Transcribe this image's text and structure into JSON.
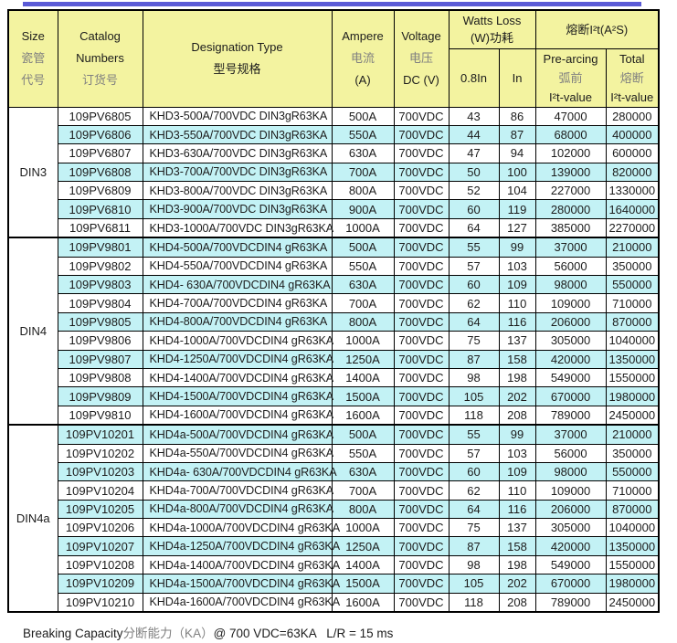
{
  "colors": {
    "header-bg": "#F3F3A0",
    "stripe-bg": "#C3F2F5",
    "top-rule": "#5B5BD6",
    "grid-line": "#000000",
    "cn-text": "#808080"
  },
  "table": {
    "header": {
      "size_en": "Size",
      "size_cn1": "瓷管",
      "size_cn2": "代号",
      "catalog_en1": "Catalog",
      "catalog_en2": "Numbers",
      "catalog_cn": "订货号",
      "designation_en": "Designation Type",
      "designation_cn": "型号规格",
      "ampere_en": "Ampere",
      "ampere_cn": "电流",
      "ampere_unit": "(A)",
      "voltage_en": "Voltage",
      "voltage_cn": "电压",
      "voltage_unit": "DC (V)",
      "watts_loss_en": "Watts Loss",
      "watts_loss_cn": "(W)功耗",
      "watts_sub_08": "0.8In",
      "watts_sub_in": "In",
      "i2t_group": "熔断I²t(A²S)",
      "prearcing_en": "Pre-arcing",
      "prearcing_cn": "弧前",
      "prearcing_sub": "I²t-value",
      "total_en": "Total",
      "total_cn": "熔断",
      "total_sub": "I²t-value"
    },
    "sections": [
      {
        "size": "DIN3",
        "rows": [
          {
            "catalog": "109PV6805",
            "designation": "KHD3-500A/700VDC DIN3gR63KA",
            "ampere": "500A",
            "voltage": "700VDC",
            "watts_08in": "43",
            "watts_in": "86",
            "prearcing_i2t": "47000",
            "total_i2t": "280000"
          },
          {
            "catalog": "109PV6806",
            "designation": "KHD3-550A/700VDC DIN3gR63KA",
            "ampere": "550A",
            "voltage": "700VDC",
            "watts_08in": "44",
            "watts_in": "87",
            "prearcing_i2t": "68000",
            "total_i2t": "400000"
          },
          {
            "catalog": "109PV6807",
            "designation": "KHD3-630A/700VDC DIN3gR63KA",
            "ampere": "630A",
            "voltage": "700VDC",
            "watts_08in": "47",
            "watts_in": "94",
            "prearcing_i2t": "102000",
            "total_i2t": "600000"
          },
          {
            "catalog": "109PV6808",
            "designation": "KHD3-700A/700VDC DIN3gR63KA",
            "ampere": "700A",
            "voltage": "700VDC",
            "watts_08in": "50",
            "watts_in": "100",
            "prearcing_i2t": "139000",
            "total_i2t": "820000"
          },
          {
            "catalog": "109PV6809",
            "designation": "KHD3-800A/700VDC DIN3gR63KA",
            "ampere": "800A",
            "voltage": "700VDC",
            "watts_08in": "52",
            "watts_in": "104",
            "prearcing_i2t": "227000",
            "total_i2t": "1330000"
          },
          {
            "catalog": "109PV6810",
            "designation": "KHD3-900A/700VDC DIN3gR63KA",
            "ampere": "900A",
            "voltage": "700VDC",
            "watts_08in": "60",
            "watts_in": "119",
            "prearcing_i2t": "280000",
            "total_i2t": "1640000"
          },
          {
            "catalog": "109PV6811",
            "designation": "KHD3-1000A/700VDC DIN3gR63KA",
            "ampere": "1000A",
            "voltage": "700VDC",
            "watts_08in": "64",
            "watts_in": "127",
            "prearcing_i2t": "385000",
            "total_i2t": "2270000"
          }
        ]
      },
      {
        "size": "DIN4",
        "rows": [
          {
            "catalog": "109PV9801",
            "designation": "KHD4-500A/700VDCDIN4 gR63KA",
            "ampere": "500A",
            "voltage": "700VDC",
            "watts_08in": "55",
            "watts_in": "99",
            "prearcing_i2t": "37000",
            "total_i2t": "210000"
          },
          {
            "catalog": "109PV9802",
            "designation": "KHD4-550A/700VDCDIN4 gR63KA",
            "ampere": "550A",
            "voltage": "700VDC",
            "watts_08in": "57",
            "watts_in": "103",
            "prearcing_i2t": "56000",
            "total_i2t": "350000"
          },
          {
            "catalog": "109PV9803",
            "designation": "KHD4- 630A/700VDCDIN4 gR63KA",
            "ampere": "630A",
            "voltage": "700VDC",
            "watts_08in": "60",
            "watts_in": "109",
            "prearcing_i2t": "98000",
            "total_i2t": "550000"
          },
          {
            "catalog": "109PV9804",
            "designation": "KHD4-700A/700VDCDIN4 gR63KA",
            "ampere": "700A",
            "voltage": "700VDC",
            "watts_08in": "62",
            "watts_in": "110",
            "prearcing_i2t": "109000",
            "total_i2t": "710000"
          },
          {
            "catalog": "109PV9805",
            "designation": "KHD4-800A/700VDCDIN4 gR63KA",
            "ampere": "800A",
            "voltage": "700VDC",
            "watts_08in": "64",
            "watts_in": "116",
            "prearcing_i2t": "206000",
            "total_i2t": "870000"
          },
          {
            "catalog": "109PV9806",
            "designation": "KHD4-1000A/700VDCDIN4 gR63KA",
            "ampere": "1000A",
            "voltage": "700VDC",
            "watts_08in": "75",
            "watts_in": "137",
            "prearcing_i2t": "305000",
            "total_i2t": "1040000"
          },
          {
            "catalog": "109PV9807",
            "designation": "KHD4-1250A/700VDCDIN4 gR63KA",
            "ampere": "1250A",
            "voltage": "700VDC",
            "watts_08in": "87",
            "watts_in": "158",
            "prearcing_i2t": "420000",
            "total_i2t": "1350000"
          },
          {
            "catalog": "109PV9808",
            "designation": "KHD4-1400A/700VDCDIN4 gR63KA",
            "ampere": "1400A",
            "voltage": "700VDC",
            "watts_08in": "98",
            "watts_in": "198",
            "prearcing_i2t": "549000",
            "total_i2t": "1550000"
          },
          {
            "catalog": "109PV9809",
            "designation": "KHD4-1500A/700VDCDIN4 gR63KA",
            "ampere": "1500A",
            "voltage": "700VDC",
            "watts_08in": "105",
            "watts_in": "202",
            "prearcing_i2t": "670000",
            "total_i2t": "1980000"
          },
          {
            "catalog": "109PV9810",
            "designation": "KHD4-1600A/700VDCDIN4 gR63KA",
            "ampere": "1600A",
            "voltage": "700VDC",
            "watts_08in": "118",
            "watts_in": "208",
            "prearcing_i2t": "789000",
            "total_i2t": "2450000"
          }
        ]
      },
      {
        "size": "DIN4a",
        "rows": [
          {
            "catalog": "109PV10201",
            "designation": "KHD4a-500A/700VDCDIN4 gR63KA",
            "ampere": "500A",
            "voltage": "700VDC",
            "watts_08in": "55",
            "watts_in": "99",
            "prearcing_i2t": "37000",
            "total_i2t": "210000"
          },
          {
            "catalog": "109PV10202",
            "designation": "KHD4a-550A/700VDCDIN4 gR63KA",
            "ampere": "550A",
            "voltage": "700VDC",
            "watts_08in": "57",
            "watts_in": "103",
            "prearcing_i2t": "56000",
            "total_i2t": "350000"
          },
          {
            "catalog": "109PV10203",
            "designation": "KHD4a- 630A/700VDCDIN4 gR63KA",
            "ampere": "630A",
            "voltage": "700VDC",
            "watts_08in": "60",
            "watts_in": "109",
            "prearcing_i2t": "98000",
            "total_i2t": "550000"
          },
          {
            "catalog": "109PV10204",
            "designation": "KHD4a-700A/700VDCDIN4 gR63KA",
            "ampere": "700A",
            "voltage": "700VDC",
            "watts_08in": "62",
            "watts_in": "110",
            "prearcing_i2t": "109000",
            "total_i2t": "710000"
          },
          {
            "catalog": "109PV10205",
            "designation": "KHD4a-800A/700VDCDIN4 gR63KA",
            "ampere": "800A",
            "voltage": "700VDC",
            "watts_08in": "64",
            "watts_in": "116",
            "prearcing_i2t": "206000",
            "total_i2t": "870000"
          },
          {
            "catalog": "109PV10206",
            "designation": "KHD4a-1000A/700VDCDIN4 gR63KA",
            "ampere": "1000A",
            "voltage": "700VDC",
            "watts_08in": "75",
            "watts_in": "137",
            "prearcing_i2t": "305000",
            "total_i2t": "1040000"
          },
          {
            "catalog": "109PV10207",
            "designation": "KHD4a-1250A/700VDCDIN4 gR63KA",
            "ampere": "1250A",
            "voltage": "700VDC",
            "watts_08in": "87",
            "watts_in": "158",
            "prearcing_i2t": "420000",
            "total_i2t": "1350000"
          },
          {
            "catalog": "109PV10208",
            "designation": "KHD4a-1400A/700VDCDIN4 gR63KA",
            "ampere": "1400A",
            "voltage": "700VDC",
            "watts_08in": "98",
            "watts_in": "198",
            "prearcing_i2t": "549000",
            "total_i2t": "1550000"
          },
          {
            "catalog": "109PV10209",
            "designation": "KHD4a-1500A/700VDCDIN4 gR63KA",
            "ampere": "1500A",
            "voltage": "700VDC",
            "watts_08in": "105",
            "watts_in": "202",
            "prearcing_i2t": "670000",
            "total_i2t": "1980000"
          },
          {
            "catalog": "109PV10210",
            "designation": "KHD4a-1600A/700VDCDIN4 gR63KA",
            "ampere": "1600A",
            "voltage": "700VDC",
            "watts_08in": "118",
            "watts_in": "208",
            "prearcing_i2t": "789000",
            "total_i2t": "2450000"
          }
        ]
      }
    ]
  },
  "footer": {
    "breaking_capacity_en": "Breaking Capacity",
    "breaking_capacity_cn": "分断能力（KA）",
    "breaking_capacity_rest": "@ 700 VDC=63KA   L/R = 15 ms"
  }
}
